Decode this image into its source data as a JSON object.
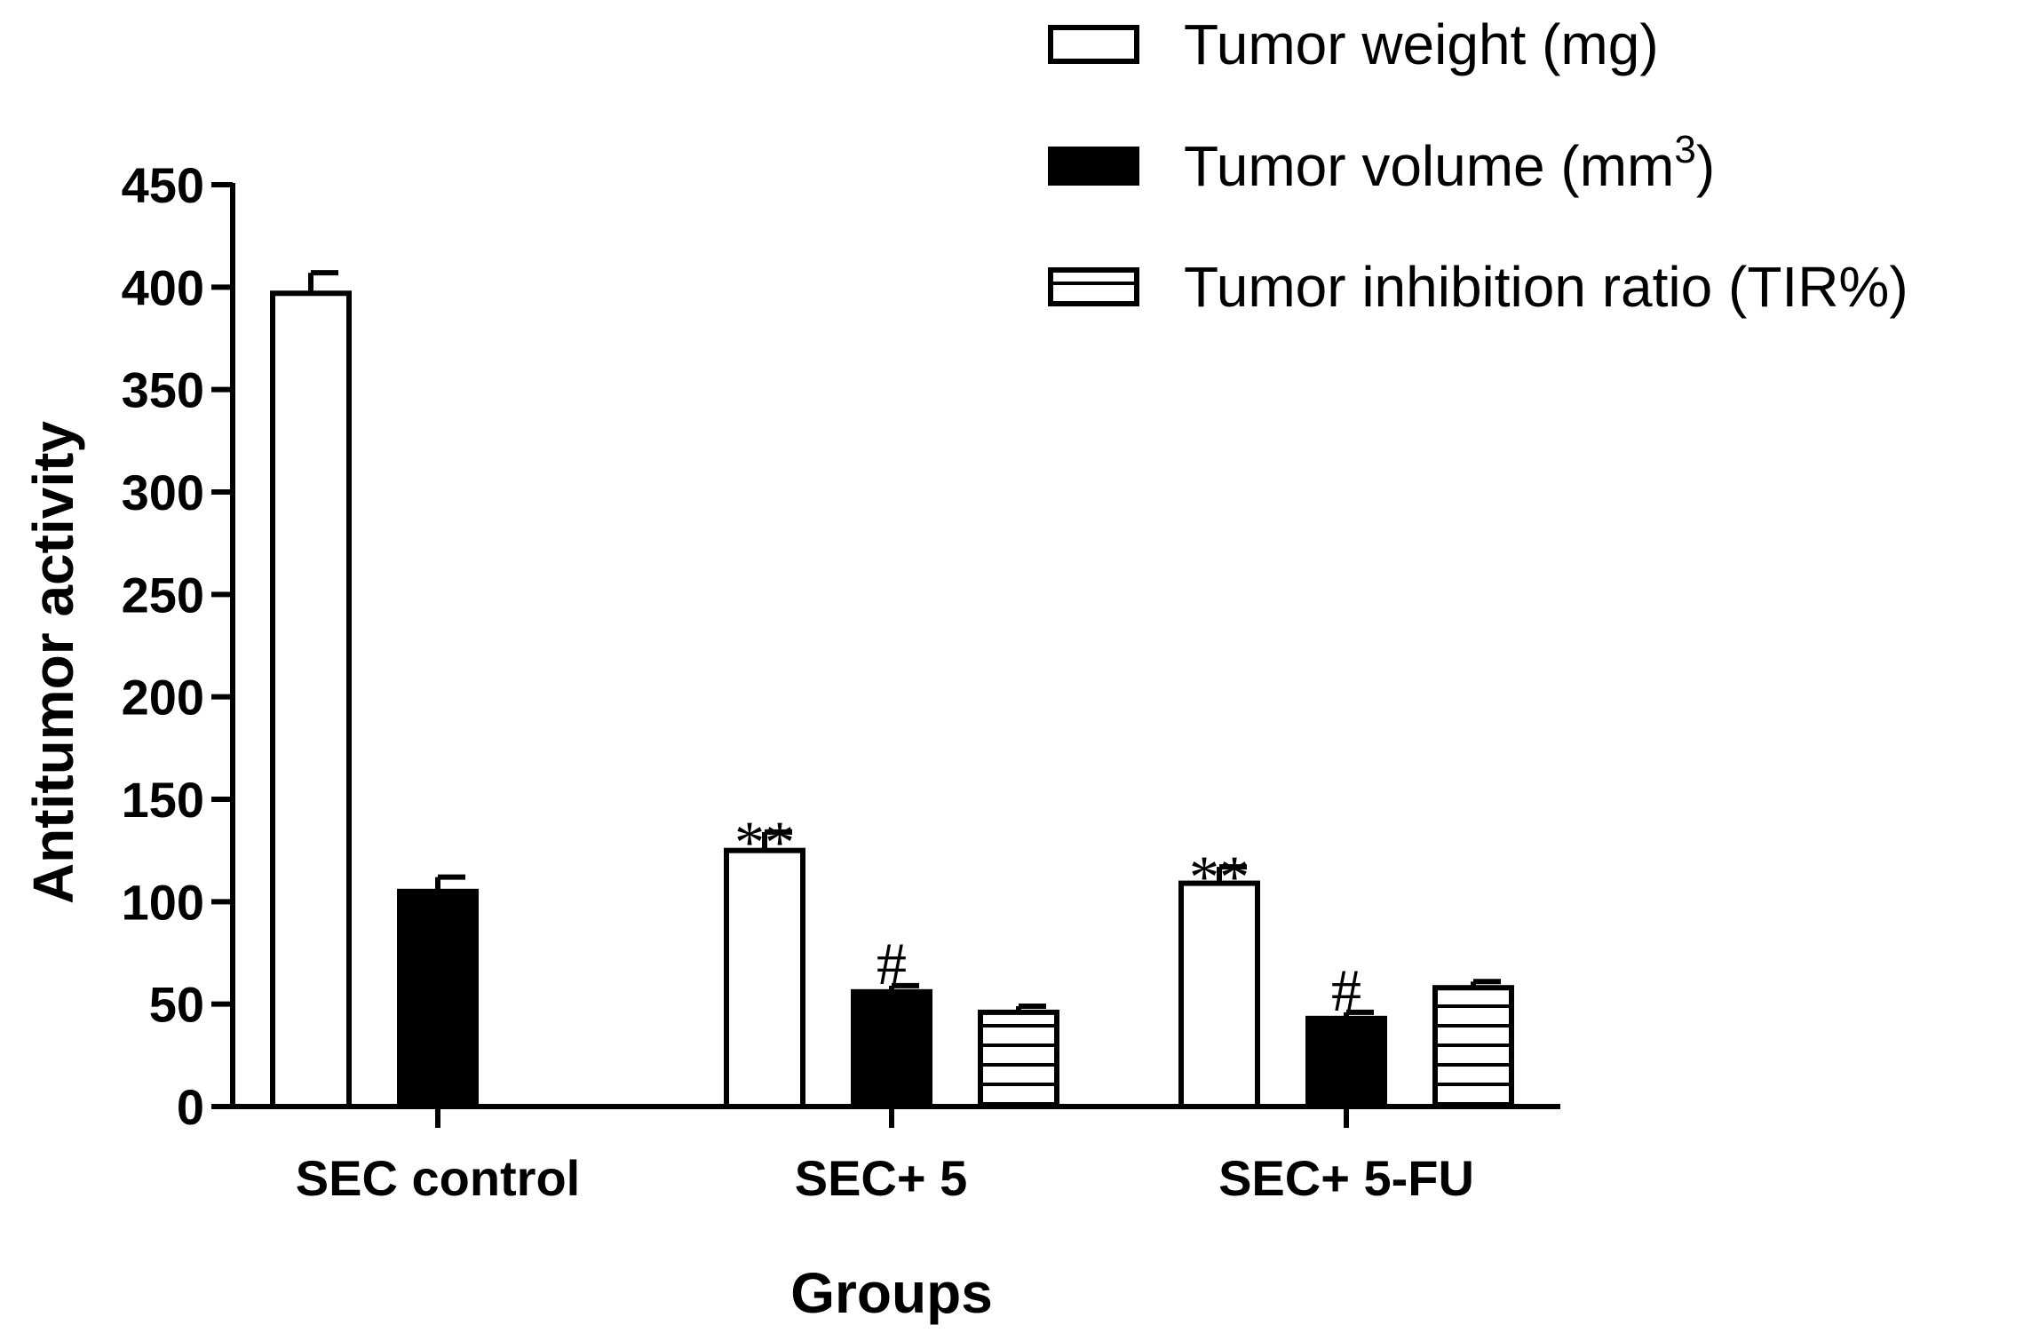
{
  "chart_data": {
    "type": "bar",
    "ylabel": "Antitumor activity",
    "xlabel": "Groups",
    "ylim": [
      0,
      450
    ],
    "yticks": [
      0,
      50,
      100,
      150,
      200,
      250,
      300,
      350,
      400,
      450
    ],
    "categories": [
      "SEC control",
      "SEC+ 5",
      "SEC+ 5-FU"
    ],
    "series": [
      {
        "name": "Tumor weight (mg)",
        "legend_label": "Tumor weight (mg)",
        "fill": "open",
        "values": [
          397,
          125,
          109
        ],
        "errors": [
          10,
          9,
          8
        ]
      },
      {
        "name": "Tumor volume (mm3)",
        "legend_label": "Tumor volume (mm",
        "legend_superscript": "3",
        "legend_suffix": ")",
        "fill": "solid",
        "values": [
          105,
          56,
          43
        ],
        "errors": [
          7,
          3,
          3
        ]
      },
      {
        "name": "Tumor inhibition ratio (TIR%)",
        "legend_label": "Tumor inhibition ratio (TIR%)",
        "fill": "horizontal-stripes",
        "values": [
          null,
          46,
          58
        ],
        "errors": [
          null,
          3,
          3
        ]
      }
    ],
    "annotations": [
      {
        "text": "**",
        "series": 0,
        "category": 1
      },
      {
        "text": "#",
        "series": 1,
        "category": 1
      },
      {
        "text": "**",
        "series": 0,
        "category": 2
      },
      {
        "text": "#",
        "series": 1,
        "category": 2
      }
    ],
    "legend_position": "top-right",
    "grid": false,
    "colors": {
      "ink": "#000000",
      "paper": "#ffffff"
    }
  }
}
